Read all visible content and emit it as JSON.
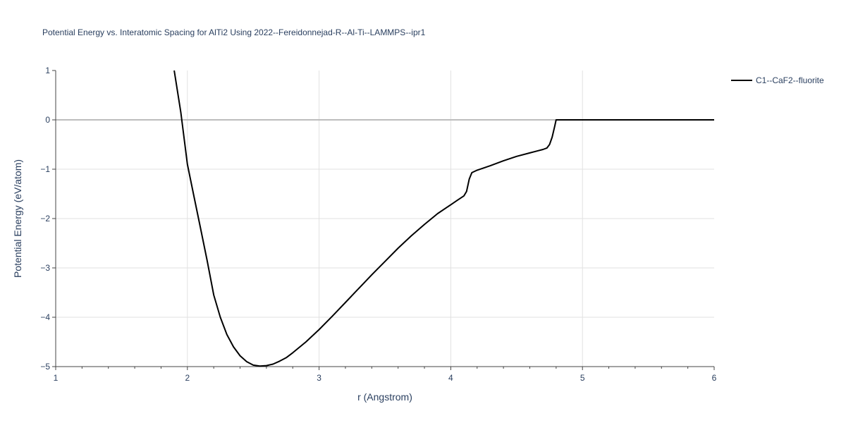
{
  "chart_data": {
    "type": "line",
    "title": "Potential Energy vs. Interatomic Spacing for AlTi2 Using 2022--Fereidonnejad-R--Al-Ti--LAMMPS--ipr1",
    "xlabel": "r (Angstrom)",
    "ylabel": "Potential Energy (eV/atom)",
    "xlim": [
      1,
      6
    ],
    "ylim": [
      -5,
      1
    ],
    "x_ticks": [
      "1",
      "2",
      "3",
      "4",
      "5",
      "6"
    ],
    "y_ticks": [
      "1",
      "0",
      "−1",
      "−2",
      "−3",
      "−4",
      "−5"
    ],
    "grid": true,
    "legend_position": "top-right",
    "series": [
      {
        "name": "C1--CaF2--fluorite",
        "color": "#000000",
        "x": [
          1.9,
          1.95,
          2.0,
          2.05,
          2.1,
          2.15,
          2.2,
          2.25,
          2.3,
          2.35,
          2.4,
          2.45,
          2.5,
          2.55,
          2.6,
          2.65,
          2.7,
          2.75,
          2.8,
          2.9,
          3.0,
          3.1,
          3.2,
          3.3,
          3.4,
          3.5,
          3.6,
          3.7,
          3.8,
          3.9,
          4.0,
          4.05,
          4.1,
          4.12,
          4.14,
          4.16,
          4.2,
          4.3,
          4.4,
          4.5,
          4.6,
          4.7,
          4.73,
          4.75,
          4.77,
          4.79,
          4.8,
          4.9,
          5.0,
          5.2,
          5.5,
          6.0
        ],
        "y": [
          1.0,
          0.15,
          -0.9,
          -1.55,
          -2.2,
          -2.85,
          -3.55,
          -4.0,
          -4.35,
          -4.6,
          -4.78,
          -4.9,
          -4.97,
          -4.99,
          -4.98,
          -4.95,
          -4.89,
          -4.82,
          -4.72,
          -4.5,
          -4.25,
          -3.98,
          -3.7,
          -3.42,
          -3.14,
          -2.87,
          -2.6,
          -2.35,
          -2.12,
          -1.9,
          -1.72,
          -1.63,
          -1.54,
          -1.45,
          -1.2,
          -1.07,
          -1.02,
          -0.93,
          -0.83,
          -0.74,
          -0.67,
          -0.6,
          -0.57,
          -0.5,
          -0.35,
          -0.12,
          0.0,
          0.0,
          0.0,
          0.0,
          0.0,
          0.0
        ]
      }
    ]
  }
}
